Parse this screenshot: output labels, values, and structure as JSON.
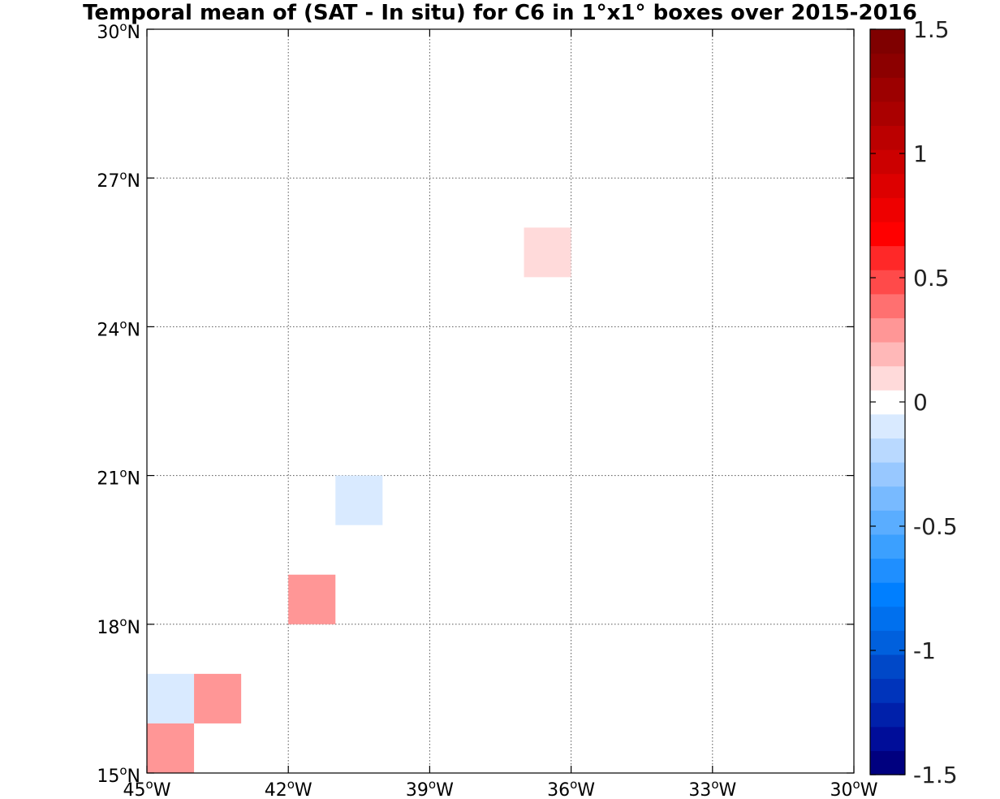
{
  "chart_data": {
    "type": "heatmap",
    "title": "Temporal mean of (SAT - In situ) for C6 in 1°x1° boxes over 2015-2016",
    "x_range": [
      -45,
      -30
    ],
    "y_range": [
      15,
      30
    ],
    "x_ticks": [
      -45,
      -42,
      -39,
      -36,
      -33,
      -30
    ],
    "x_tick_labels": [
      {
        "num": "45",
        "sup": "o",
        "dir": "W"
      },
      {
        "num": "42",
        "sup": "o",
        "dir": "W"
      },
      {
        "num": "39",
        "sup": "o",
        "dir": "W"
      },
      {
        "num": "36",
        "sup": "o",
        "dir": "W"
      },
      {
        "num": "33",
        "sup": "o",
        "dir": "W"
      },
      {
        "num": "30",
        "sup": "o",
        "dir": "W"
      }
    ],
    "y_ticks": [
      15,
      18,
      21,
      24,
      27,
      30
    ],
    "y_tick_labels": [
      {
        "num": "15",
        "sup": "o",
        "dir": "N"
      },
      {
        "num": "18",
        "sup": "o",
        "dir": "N"
      },
      {
        "num": "21",
        "sup": "o",
        "dir": "N"
      },
      {
        "num": "24",
        "sup": "o",
        "dir": "N"
      },
      {
        "num": "27",
        "sup": "o",
        "dir": "N"
      },
      {
        "num": "30",
        "sup": "o",
        "dir": "N"
      }
    ],
    "grid": true,
    "cells": [
      {
        "lon": -37,
        "lat": 25,
        "value": 0.1
      },
      {
        "lon": -41,
        "lat": 20,
        "value": -0.1
      },
      {
        "lon": -42,
        "lat": 18,
        "value": 0.3
      },
      {
        "lon": -45,
        "lat": 16,
        "value": -0.1
      },
      {
        "lon": -44,
        "lat": 16,
        "value": 0.3
      },
      {
        "lon": -45,
        "lat": 15,
        "value": 0.3
      }
    ],
    "colorbar": {
      "range": [
        -1.5,
        1.5
      ],
      "tick_values": [
        1.5,
        1,
        0.5,
        0,
        -0.5,
        -1,
        -1.5
      ],
      "tick_labels": [
        "1.5",
        "1",
        "0.5",
        "0",
        "-0.5",
        "-1",
        "-1.5"
      ],
      "colors": [
        "#00007f",
        "#000d99",
        "#0020aa",
        "#0034bb",
        "#0048c8",
        "#0060dd",
        "#0070ee",
        "#007fff",
        "#1f8fff",
        "#3ba0ff",
        "#5aadff",
        "#78baff",
        "#98c8ff",
        "#b9d9ff",
        "#d9eaff",
        "#ffffff",
        "#ffdada",
        "#ffb8b8",
        "#ff9696",
        "#ff7070",
        "#ff4a4a",
        "#ff2828",
        "#ff0000",
        "#ee0000",
        "#dd0000",
        "#cc0000",
        "#bb0000",
        "#aa0000",
        "#9c0000",
        "#8c0000",
        "#7f0000"
      ]
    }
  }
}
